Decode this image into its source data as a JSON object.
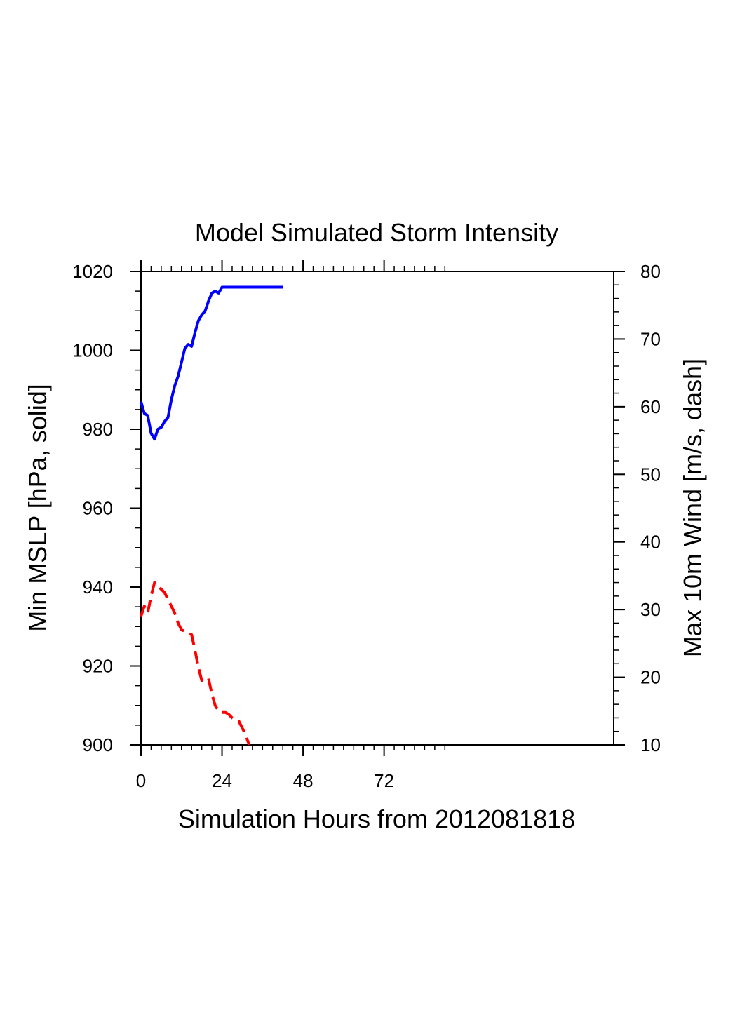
{
  "chart_data": {
    "type": "line",
    "title": "Model Simulated Storm Intensity",
    "xlabel": "Simulation Hours from 2012081818",
    "ylabel_left": "Min MSLP  [hPa, solid]",
    "ylabel_right": "Max 10m Wind  [m/s, dash]",
    "xlim": [
      0,
      140
    ],
    "ylim_left": [
      900,
      1020
    ],
    "ylim_right": [
      10,
      80
    ],
    "x_ticks": [
      0,
      24,
      48,
      72
    ],
    "x_tick_labels": [
      "0",
      "24",
      "48",
      "72"
    ],
    "y_left_ticks": [
      900,
      920,
      940,
      960,
      980,
      1000,
      1020
    ],
    "y_left_tick_labels": [
      "900",
      "920",
      "940",
      "960",
      "980",
      "1000",
      "1020"
    ],
    "y_right_ticks": [
      10,
      20,
      30,
      40,
      50,
      60,
      70,
      80
    ],
    "y_right_tick_labels": [
      "10",
      "20",
      "30",
      "40",
      "50",
      "60",
      "70",
      "80"
    ],
    "grid": false,
    "series": [
      {
        "axis": "left",
        "style": "solid",
        "color": "#0000ff",
        "x": [
          0,
          1,
          2,
          3,
          4,
          5,
          6,
          7,
          8,
          9,
          10,
          11,
          12,
          13,
          14,
          15,
          16,
          17,
          18,
          19,
          20,
          21,
          22,
          23,
          24,
          25,
          26,
          27,
          28,
          29,
          30,
          31,
          32,
          33,
          34,
          35,
          36,
          37,
          38,
          39,
          40,
          41,
          42
        ],
        "values": [
          987,
          984,
          983.5,
          979,
          977.5,
          980,
          980.5,
          982,
          983,
          987.5,
          991,
          993.5,
          997,
          1000.5,
          1001.5,
          1001,
          1004.5,
          1007.5,
          1009,
          1010,
          1012.5,
          1014.5,
          1015,
          1014.5,
          1016,
          1016,
          1016,
          1016,
          1016,
          1016,
          1016,
          1016,
          1016,
          1016,
          1016,
          1016,
          1016,
          1016,
          1016,
          1016,
          1016,
          1016,
          1016
        ]
      },
      {
        "axis": "right",
        "style": "dash",
        "color": "#ff0000",
        "x": [
          0,
          1,
          2,
          3,
          4,
          5,
          6,
          7,
          8,
          9,
          10,
          11,
          12,
          13,
          14,
          15,
          16,
          17,
          18,
          19,
          20,
          21,
          22,
          23,
          24,
          25,
          26,
          27,
          28,
          29,
          30,
          31,
          32
        ],
        "values": [
          29,
          30.5,
          29.5,
          32,
          34,
          33.5,
          33,
          32.5,
          31.5,
          30.5,
          29.5,
          28,
          27,
          26.8,
          26.5,
          26.3,
          24,
          21.5,
          19.5,
          19.8,
          19.8,
          17.5,
          15.8,
          15,
          14.8,
          14.8,
          14.5,
          14,
          13.8,
          13.5,
          12.5,
          11.5,
          10
        ]
      }
    ]
  }
}
